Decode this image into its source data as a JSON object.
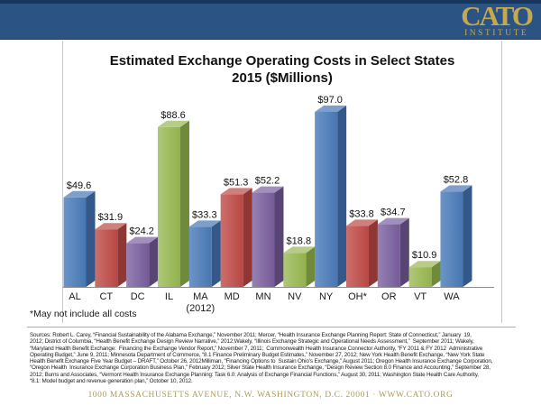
{
  "header": {
    "logo_title": "CATO",
    "logo_subtitle": "INSTITUTE",
    "bg_color": "#2B5384",
    "accent_color": "#16365C",
    "gold_color": "#C5A94E"
  },
  "chart_data": {
    "type": "bar",
    "bar_style": "3d-clustered",
    "title": "Estimated Exchange Operating Costs in Select States 2015 ($Millions)",
    "title_lines": [
      "Estimated Exchange Operating Costs in Select States",
      "2015 ($Millions)"
    ],
    "categories": [
      {
        "label": "AL"
      },
      {
        "label": "CT"
      },
      {
        "label": "DC"
      },
      {
        "label": "IL"
      },
      {
        "label": "MA",
        "sublabel": "(2012)"
      },
      {
        "label": "MD"
      },
      {
        "label": "MN"
      },
      {
        "label": "NV"
      },
      {
        "label": "NY"
      },
      {
        "label": "OH*"
      },
      {
        "label": "OR"
      },
      {
        "label": "VT"
      },
      {
        "label": "WA"
      }
    ],
    "values": [
      49.6,
      31.9,
      24.2,
      88.6,
      33.3,
      51.3,
      52.2,
      18.8,
      97.0,
      33.8,
      34.7,
      10.9,
      52.8
    ],
    "value_labels": [
      "$49.6",
      "$31.9",
      "$24.2",
      "$88.6",
      "$33.3",
      "$51.3",
      "$52.2",
      "$18.8",
      "$97.0",
      "$33.8",
      "$34.7",
      "$10.9",
      "$52.8"
    ],
    "xlabel": "",
    "ylabel": "",
    "ylim": [
      0,
      100
    ],
    "grid": false,
    "legend": "none",
    "axis_line_color": "#8C8C8C",
    "label_color": "#1A1A1A",
    "color_cycle": [
      "blue",
      "red",
      "purple",
      "green"
    ],
    "palette": {
      "blue": {
        "front1": "#6B95C8",
        "front2": "#4876B1",
        "top": "#7E9FCC",
        "side": "#34588A"
      },
      "red": {
        "front1": "#CC6F6C",
        "front2": "#B84743",
        "top": "#CF7F7C",
        "side": "#8E3734"
      },
      "purple": {
        "front1": "#9681B3",
        "front2": "#755A97",
        "top": "#A190BC",
        "side": "#594573"
      },
      "green": {
        "front1": "#AFC878",
        "front2": "#92B24C",
        "top": "#B7CD87",
        "side": "#6F8A3B"
      }
    }
  },
  "footnote": "*May not include all costs",
  "sources": {
    "lines": [
      "Sources: Robert L. Carey, “Financial Sustainability of the Alabama Exchange,” November 2011; Mercer, “Health Insurance Exchange Planning Report: State of Connecticut,” January  19,",
      "2012; District of Columbia, “Health Benefit Exchange Design Review Narrative,” 2012;Wakely, “Illinois Exchange Strategic and Operational Needs Assessment,”  September 2011; Wakely,",
      "“Maryland Health Benefit Exchange:  Financing the Exchange Vendor Report,” November 7, 2011;  Commonwealth Health Insurance Connector Authority, “FY 2011 & FY 2012  Administrative",
      "Operating Budget,” June 9, 2011; Minnesota Department of Commerce, “8.1 Finance Preliminary Budget Estimates,” November 27, 2012; New York Health Benefit Exchange, “New York State",
      "Health Benefit Exchange Five Year Budget – DRAFT,” October 26, 2012Milliman, “Financing Options to  Sustain Ohio’s Exchange,” August 2011; Oregon Health Insurance Exchange Corporation,",
      "“Oregon Health  Insurance Exchange Corporation Business Plan,” February 2012; Silver State Health Insurance Exchange, “Design Review Section 8.0 Finance and Accounting,” September 28,",
      "2012; Burns and Associates, “Vermont Health Insurance Exchange Planning: Task 6.0: Analysis of Exchange Financial Functions,” August 30, 2011; Washington State Health Care Authority,",
      "“8.1: Model budget and revenue generation plan,” October 10, 2012."
    ]
  },
  "footer": {
    "address": "1000 MASSACHUSETTS AVENUE, N.W.   WASHINGTON, D.C.  20001 · WWW.CATO.ORG",
    "color": "#AD9D55"
  }
}
